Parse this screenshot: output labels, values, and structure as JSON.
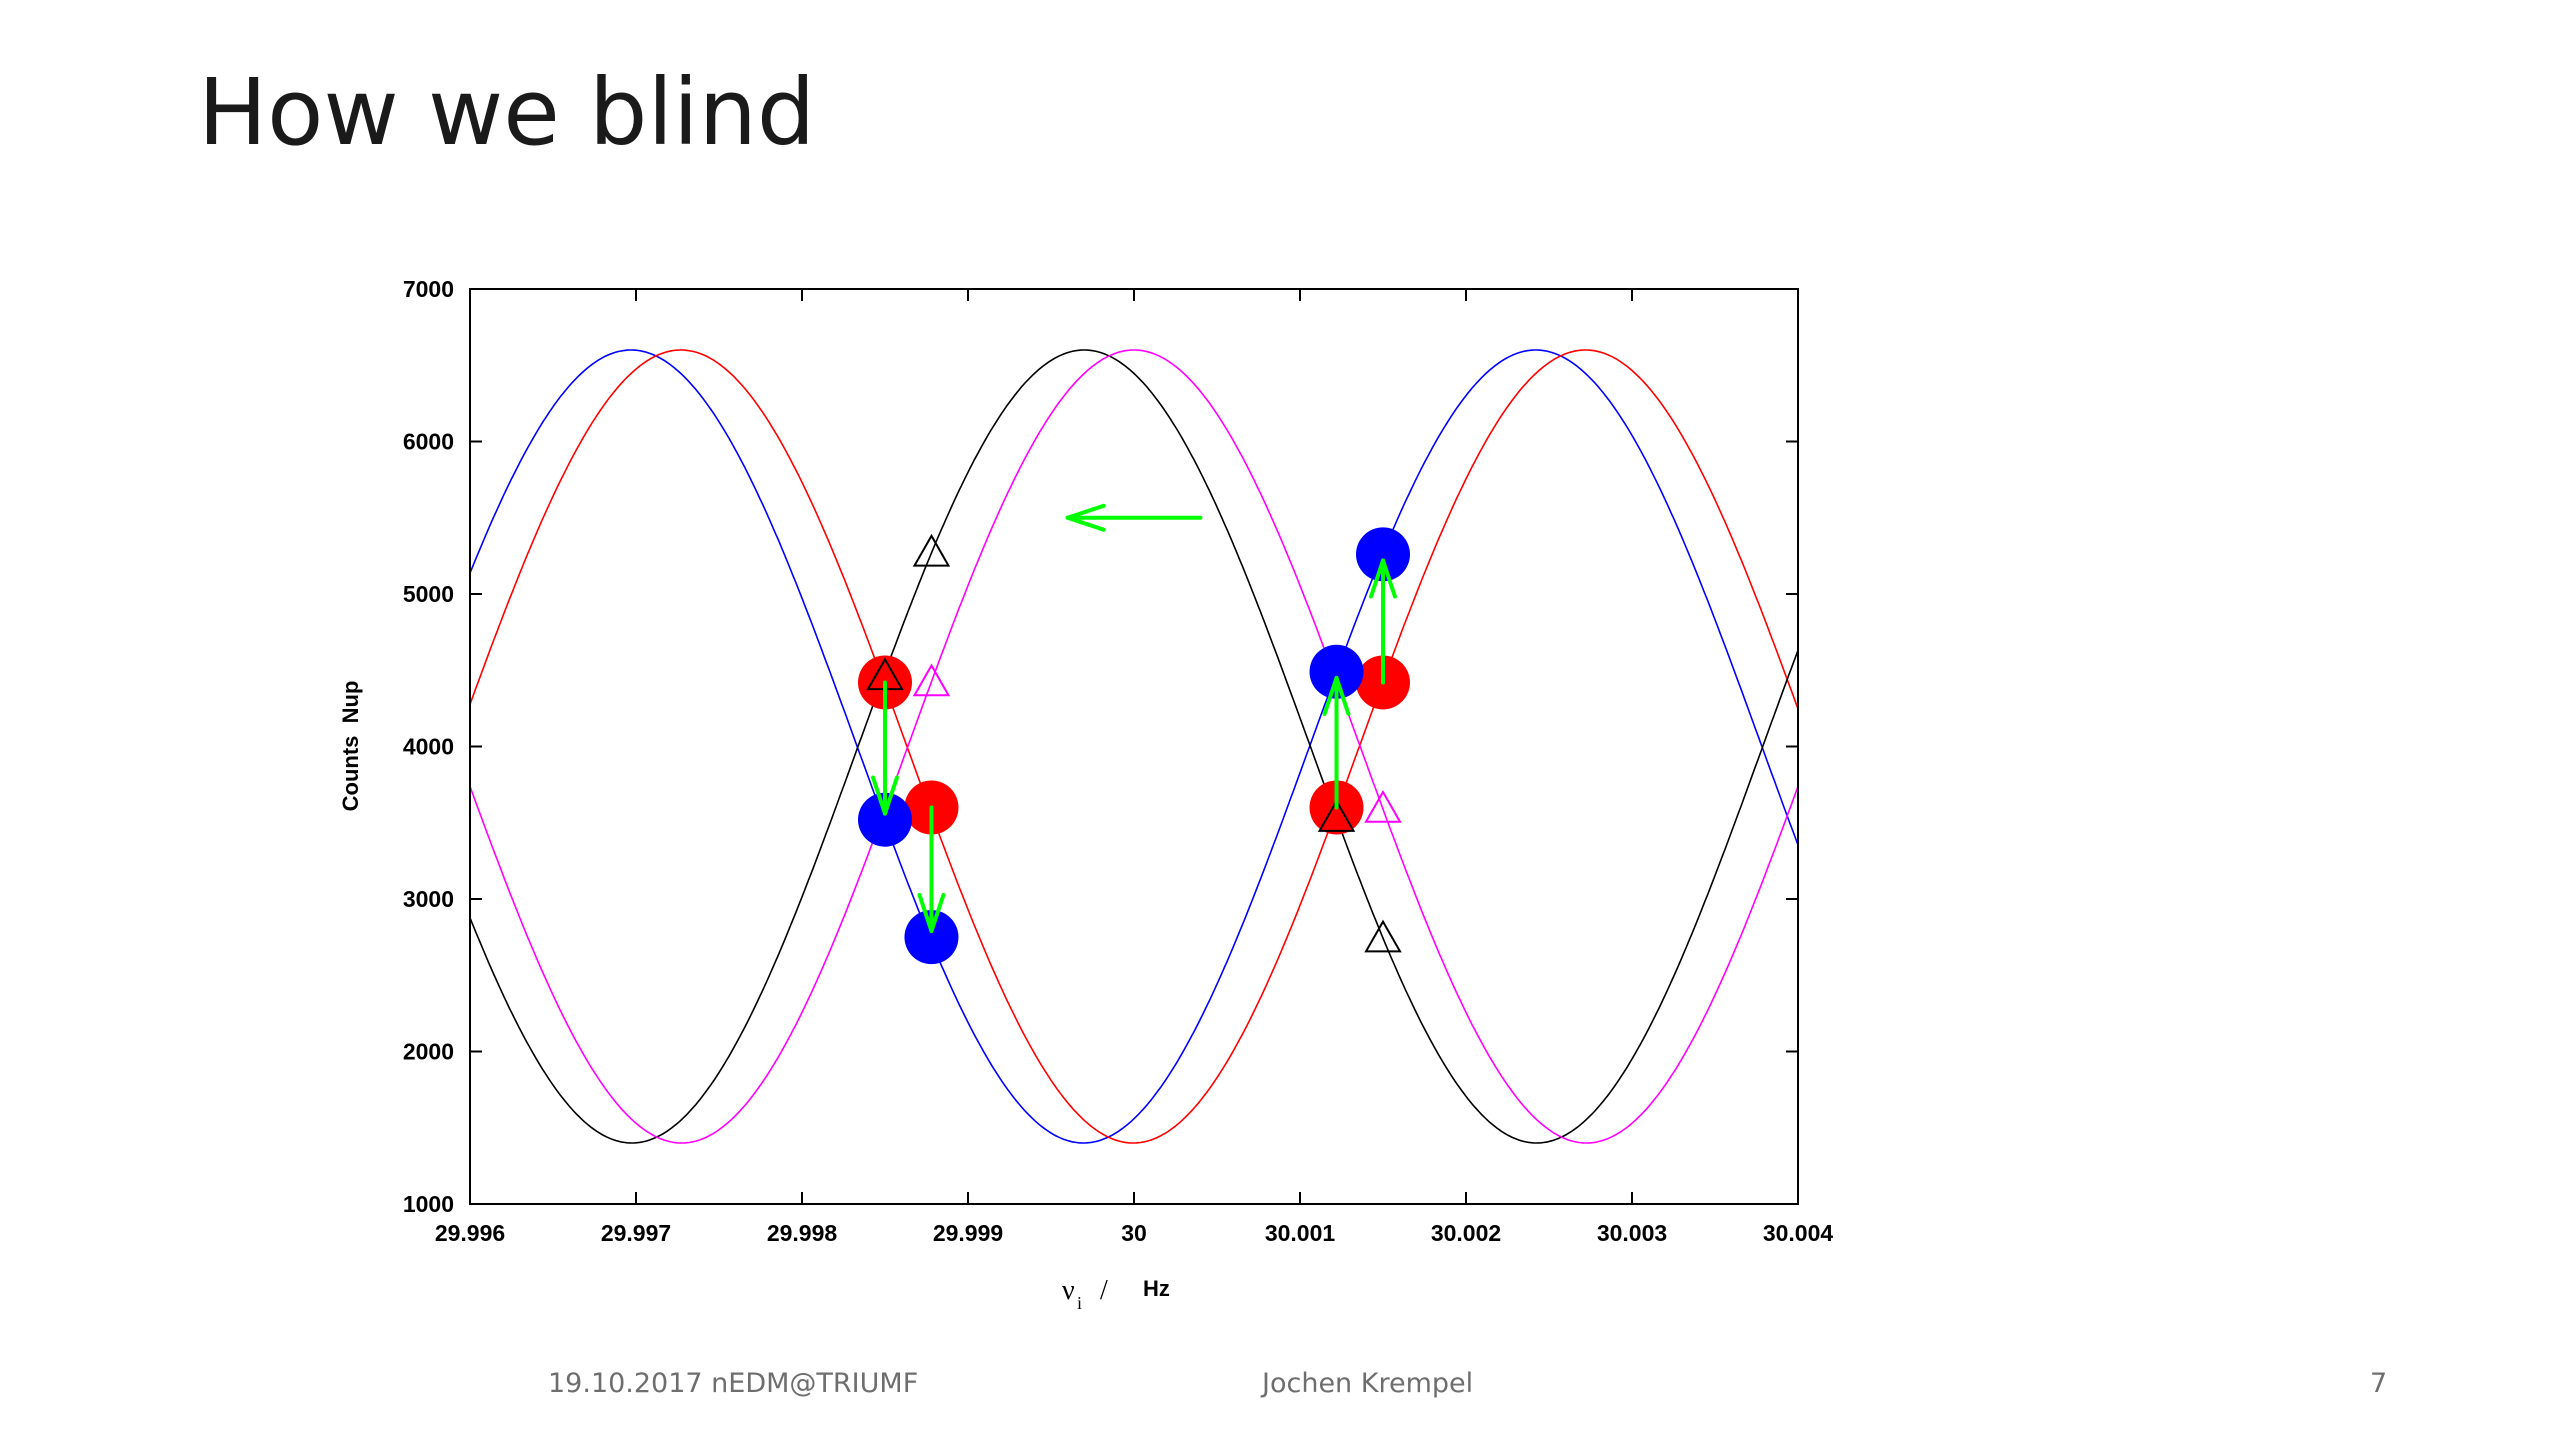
{
  "slide": {
    "title": "How we blind",
    "footer_left": "19.10.2017 nEDM@TRIUMF",
    "footer_center": "Jochen Krempel",
    "page_number": "7"
  },
  "chart_data": {
    "type": "line",
    "title": "",
    "xlabel": "ν",
    "xlabel_subscript": "i",
    "xlabel_separator": "/",
    "xlabel_unit": "Hz",
    "ylabel": "Counts  Nup",
    "xlim": [
      29.996,
      30.004
    ],
    "ylim": [
      1000,
      7000
    ],
    "x_ticks": [
      29.996,
      29.997,
      29.998,
      29.999,
      30,
      30.001,
      30.002,
      30.003,
      30.004
    ],
    "x_tick_labels": [
      "29.996",
      "29.997",
      "29.998",
      "29.999",
      "30",
      "30.001",
      "30.002",
      "30.003",
      "30.004"
    ],
    "y_ticks": [
      1000,
      2000,
      3000,
      4000,
      5000,
      6000,
      7000
    ],
    "y_tick_labels": [
      "1000",
      "2000",
      "3000",
      "4000",
      "5000",
      "6000",
      "7000"
    ],
    "grid": false,
    "legend": "none",
    "curve_model": "y = offset + amplitude * cos(2π (x − x_max) / period)",
    "series": [
      {
        "color": "#0000ff",
        "offset": 4000,
        "amplitude": 2600,
        "period": 0.00545,
        "x_max": 29.99697
      },
      {
        "color": "#ff0000",
        "offset": 4000,
        "amplitude": 2600,
        "period": 0.00545,
        "x_max": 29.99727
      },
      {
        "color": "#000000",
        "offset": 4000,
        "amplitude": 2600,
        "period": 0.00545,
        "x_max": 29.9997
      },
      {
        "color": "#ff00ff",
        "offset": 4000,
        "amplitude": 2600,
        "period": 0.00545,
        "x_max": 30.0
      }
    ],
    "circle_markers": [
      {
        "x": 29.9985,
        "y": 4420,
        "color": "#ff0000"
      },
      {
        "x": 29.99878,
        "y": 3600,
        "color": "#ff0000"
      },
      {
        "x": 30.00122,
        "y": 3600,
        "color": "#ff0000"
      },
      {
        "x": 30.0015,
        "y": 4420,
        "color": "#ff0000"
      },
      {
        "x": 29.9985,
        "y": 3520,
        "color": "#0000ff"
      },
      {
        "x": 29.99878,
        "y": 2750,
        "color": "#0000ff"
      },
      {
        "x": 30.00122,
        "y": 4490,
        "color": "#0000ff"
      },
      {
        "x": 30.0015,
        "y": 5260,
        "color": "#0000ff"
      }
    ],
    "triangle_markers": [
      {
        "x": 29.9985,
        "y": 4460,
        "color": "#000000"
      },
      {
        "x": 29.99878,
        "y": 5270,
        "color": "#000000"
      },
      {
        "x": 30.00122,
        "y": 3530,
        "color": "#000000"
      },
      {
        "x": 30.0015,
        "y": 2740,
        "color": "#000000"
      },
      {
        "x": 29.99878,
        "y": 4420,
        "color": "#ff00ff"
      },
      {
        "x": 30.0015,
        "y": 3590,
        "color": "#ff00ff"
      }
    ],
    "arrows": [
      {
        "x1": 29.9985,
        "y1": 4420,
        "x2": 29.9985,
        "y2": 3560,
        "color": "#00ff00"
      },
      {
        "x1": 29.99878,
        "y1": 3600,
        "x2": 29.99878,
        "y2": 2790,
        "color": "#00ff00"
      },
      {
        "x1": 30.00122,
        "y1": 3600,
        "x2": 30.00122,
        "y2": 4450,
        "color": "#00ff00"
      },
      {
        "x1": 30.0015,
        "y1": 4420,
        "x2": 30.0015,
        "y2": 5220,
        "color": "#00ff00"
      },
      {
        "x1": 30.0004,
        "y1": 5500,
        "x2": 29.9996,
        "y2": 5500,
        "color": "#00ff00"
      }
    ]
  }
}
